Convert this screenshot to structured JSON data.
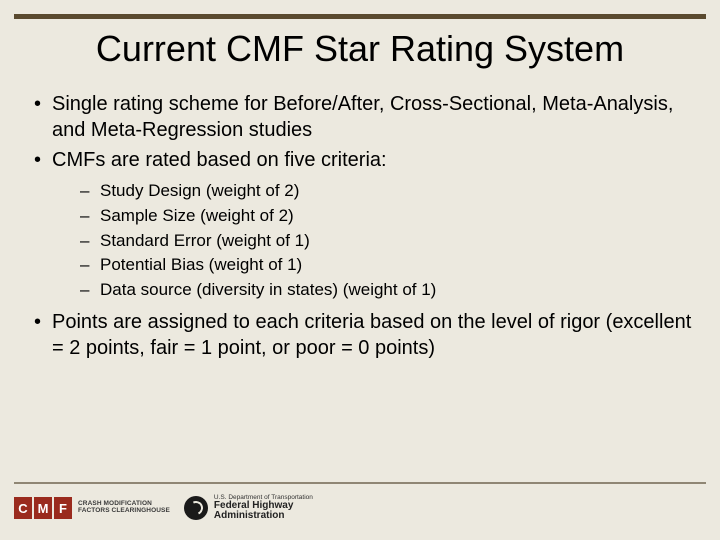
{
  "title": "Current CMF Star Rating System",
  "bullets": {
    "b0": "Single rating scheme for Before/After, Cross-Sectional, Meta-Analysis, and Meta-Regression studies",
    "b1": "CMFs are rated based on five criteria:",
    "b2": "Points are assigned to each criteria based on the level of rigor (excellent = 2 points, fair = 1 point, or poor = 0 points)"
  },
  "criteria": {
    "c0": "Study Design (weight of 2)",
    "c1": "Sample Size (weight of 2)",
    "c2": "Standard Error (weight of 1)",
    "c3": "Potential Bias (weight of 1)",
    "c4": "Data source (diversity in states) (weight of 1)"
  },
  "footer": {
    "cmf_letters": {
      "l0": "C",
      "l1": "M",
      "l2": "F"
    },
    "cmf_caption_l1": "CRASH MODIFICATION",
    "cmf_caption_l2": "FACTORS CLEARINGHOUSE",
    "dot_small": "U.S. Department of Transportation",
    "fhwa_l1": "Federal Highway",
    "fhwa_l2": "Administration"
  },
  "colors": {
    "background": "#ece9df",
    "top_bar": "#5a4a2f",
    "footer_rule": "#8f8674",
    "cmf_red": "#9a2b1e",
    "text": "#000000"
  },
  "typography": {
    "title_fontsize": 36,
    "bullet_fontsize": 20,
    "sub_fontsize": 17
  }
}
